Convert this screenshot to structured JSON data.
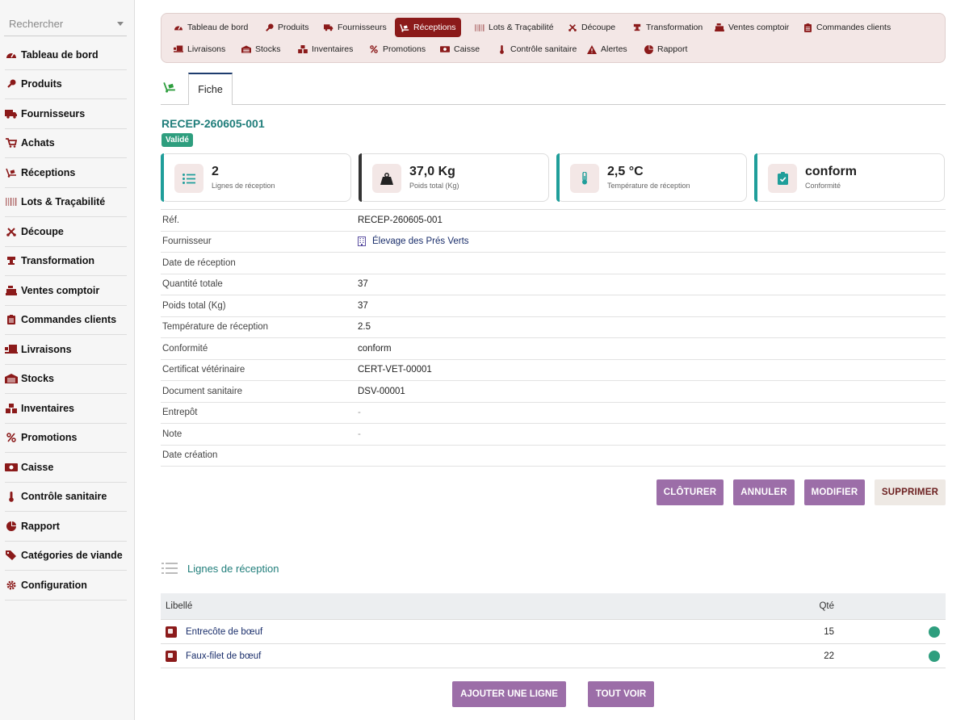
{
  "colors": {
    "brand": "#8b1a1a",
    "teal": "#1f7d7a",
    "success": "#2e9e7e",
    "action": "#9c6ea8"
  },
  "search": {
    "placeholder": "Rechercher"
  },
  "sidebar": {
    "items": [
      {
        "label": "Tableau de bord",
        "icon": "gauge-icon"
      },
      {
        "label": "Produits",
        "icon": "drumstick-icon"
      },
      {
        "label": "Fournisseurs",
        "icon": "truck-icon"
      },
      {
        "label": "Achats",
        "icon": "cart-icon"
      },
      {
        "label": "Réceptions",
        "icon": "dolly-icon"
      },
      {
        "label": "Lots & Traçabilité",
        "icon": "barcode-icon"
      },
      {
        "label": "Découpe",
        "icon": "scissors-icon"
      },
      {
        "label": "Transformation",
        "icon": "grinder-icon"
      },
      {
        "label": "Ventes comptoir",
        "icon": "cash-register-icon"
      },
      {
        "label": "Commandes clients",
        "icon": "clipboard-icon"
      },
      {
        "label": "Livraisons",
        "icon": "truck-loading-icon"
      },
      {
        "label": "Stocks",
        "icon": "warehouse-icon"
      },
      {
        "label": "Inventaires",
        "icon": "boxes-icon"
      },
      {
        "label": "Promotions",
        "icon": "percent-icon"
      },
      {
        "label": "Caisse",
        "icon": "money-icon"
      },
      {
        "label": "Contrôle sanitaire",
        "icon": "thermometer-icon"
      },
      {
        "label": "Rapport",
        "icon": "pie-chart-icon"
      },
      {
        "label": "Catégories de viande",
        "icon": "tags-icon"
      },
      {
        "label": "Configuration",
        "icon": "gear-icon"
      }
    ]
  },
  "topnav": {
    "items": [
      {
        "label": "Tableau de bord",
        "icon": "gauge-icon"
      },
      {
        "label": "Produits",
        "icon": "drumstick-icon"
      },
      {
        "label": "Fournisseurs",
        "icon": "truck-icon"
      },
      {
        "label": "Réceptions",
        "icon": "dolly-icon",
        "active": true
      },
      {
        "label": "Lots & Traçabilité",
        "icon": "barcode-icon"
      },
      {
        "label": "Découpe",
        "icon": "scissors-icon"
      },
      {
        "label": "Transformation",
        "icon": "grinder-icon"
      },
      {
        "label": "Ventes comptoir",
        "icon": "cash-register-icon"
      },
      {
        "label": "Commandes clients",
        "icon": "clipboard-icon"
      },
      {
        "label": "Livraisons",
        "icon": "truck-loading-icon"
      },
      {
        "label": "Stocks",
        "icon": "warehouse-icon"
      },
      {
        "label": "Inventaires",
        "icon": "boxes-icon"
      },
      {
        "label": "Promotions",
        "icon": "percent-icon"
      },
      {
        "label": "Caisse",
        "icon": "money-icon"
      },
      {
        "label": "Contrôle sanitaire",
        "icon": "thermometer-icon"
      },
      {
        "label": "Alertes",
        "icon": "warning-icon"
      },
      {
        "label": "Rapport",
        "icon": "pie-chart-icon"
      }
    ]
  },
  "tabs": {
    "fiche": "Fiche"
  },
  "record": {
    "title": "RECEP-260605-001",
    "status": "Validé"
  },
  "stats": [
    {
      "value": "2",
      "label": "Lignes de réception",
      "icon": "list-icon"
    },
    {
      "value": "37,0 Kg",
      "label": "Poids total (Kg)",
      "icon": "weight-icon"
    },
    {
      "value": "2,5 °C",
      "label": "Température de réception",
      "icon": "thermometer-icon"
    },
    {
      "value": "conform",
      "label": "Conformité",
      "icon": "clipboard-check-icon"
    }
  ],
  "details": [
    {
      "label": "Réf.",
      "value": "RECEP-260605-001"
    },
    {
      "label": "Fournisseur",
      "value": "Élevage des Prés Verts"
    },
    {
      "label": "Date de réception",
      "value": ""
    },
    {
      "label": "Quantité totale",
      "value": "37"
    },
    {
      "label": "Poids total (Kg)",
      "value": "37"
    },
    {
      "label": "Température de réception",
      "value": "2.5"
    },
    {
      "label": "Conformité",
      "value": "conform"
    },
    {
      "label": "Certificat vétérinaire",
      "value": "CERT-VET-00001"
    },
    {
      "label": "Document sanitaire",
      "value": "DSV-00001"
    },
    {
      "label": "Entrepôt",
      "value": "-"
    },
    {
      "label": "Note",
      "value": "-"
    },
    {
      "label": "Date création",
      "value": ""
    }
  ],
  "actions": {
    "cloturer": "CLÔTURER",
    "annuler": "ANNULER",
    "modifier": "MODIFIER",
    "supprimer": "SUPPRIMER"
  },
  "lines": {
    "title": "Lignes de réception",
    "headers": {
      "libelle": "Libellé",
      "qte": "Qté"
    },
    "rows": [
      {
        "libelle": "Entrecôte de bœuf",
        "qte": "15"
      },
      {
        "libelle": "Faux-filet de bœuf",
        "qte": "22"
      }
    ],
    "add_label": "AJOUTER UNE LIGNE",
    "all_label": "TOUT VOIR"
  }
}
